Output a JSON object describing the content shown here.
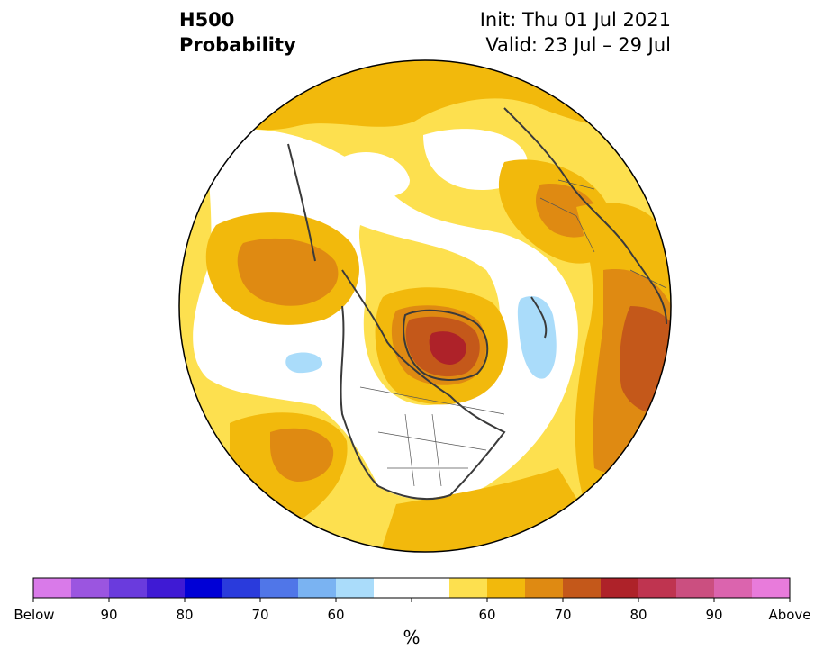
{
  "header": {
    "variable": "H500",
    "product": "Probability",
    "init": "Init: Thu 01 Jul 2021",
    "valid": "Valid: 23 Jul – 29 Jul"
  },
  "colorbar": {
    "unit": "%",
    "tick_labels": [
      "Below",
      "90",
      "80",
      "70",
      "60",
      "60",
      "70",
      "80",
      "90",
      "Above"
    ],
    "colors": [
      "#d97ae9",
      "#9b55e0",
      "#6a3bdd",
      "#3f1ad4",
      "#0000d6",
      "#2a3bdc",
      "#5076e8",
      "#7ab3f2",
      "#aadcfa",
      "#ffffff",
      "#ffffff",
      "#fde04f",
      "#f2b90c",
      "#df8a12",
      "#c4581a",
      "#ae2229",
      "#bf3450",
      "#cb4f80",
      "#db64ae",
      "#e87bdb"
    ]
  },
  "map": {
    "projection": "north-polar-stereographic",
    "ocean_base_color": "#fde04f",
    "coastline_color": "#3a3a3a"
  }
}
